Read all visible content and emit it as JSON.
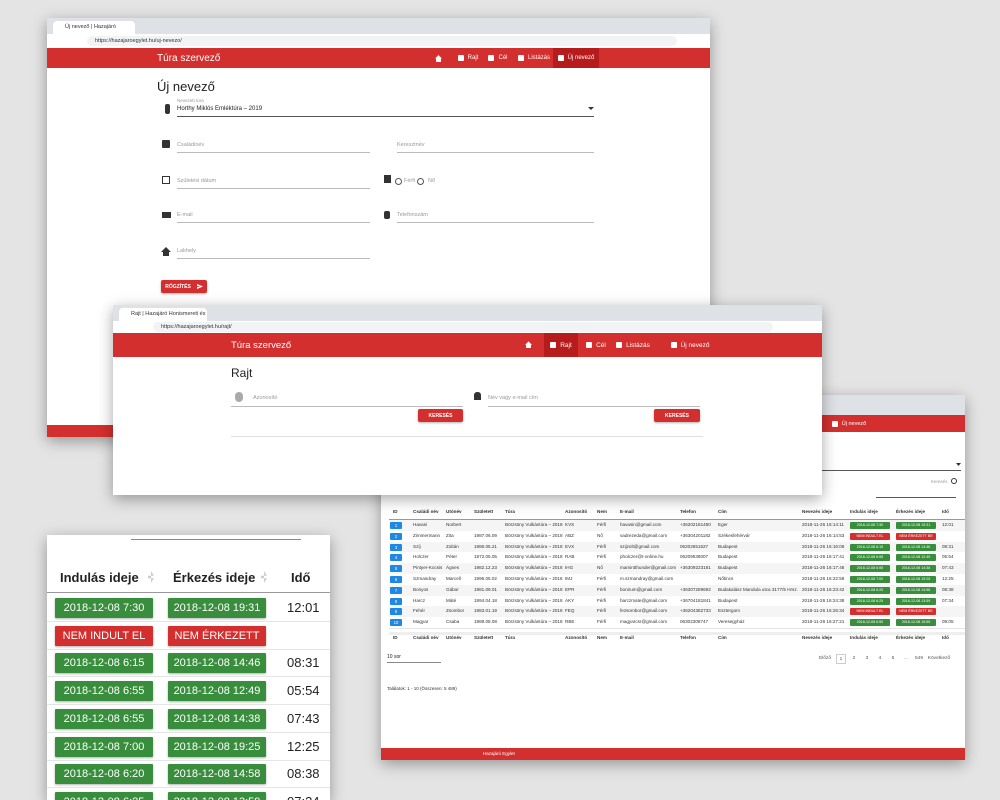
{
  "nav": {
    "brand": "Túra szervező",
    "items": [
      "Rajt",
      "Cél",
      "Listázás",
      "Új nevező"
    ]
  },
  "new_entry": {
    "tab": "Új nevező | Hazajáró Honisme...",
    "url": "https://hazajaroegylet.hu/uj-nevezo/",
    "title": "Új nevező",
    "tour_label": "Nevezett túra",
    "tour_value": "Horthy Miklós Emléktúra – 2019",
    "fields": {
      "family": "Családinév",
      "given": "Keresztnév",
      "birth": "Születési dátum",
      "male": "Férfi",
      "female": "Nő",
      "email": "E-mail",
      "phone": "Telefonszám",
      "city": "Lakhely"
    },
    "button": "RÖGZÍTÉS"
  },
  "start": {
    "tab": "Rajt | Hazajáró Honismereti és T...",
    "url": "https://hazajaroegylet.hu/rajt/",
    "title": "Rajt",
    "id_field": "Azonosító",
    "name_field": "Név vagy e-mail cím",
    "button": "KERESÉS"
  },
  "list": {
    "search": "Keresés",
    "columns": [
      "ID",
      "Családi név",
      "Utónév",
      "Született",
      "Túra",
      "Azonosító",
      "Nem",
      "E-mail",
      "Telefon",
      "Cím",
      "Nevezés ideje",
      "Indulás ideje",
      "Érkezés ideje",
      "Idő"
    ],
    "rows": [
      [
        1,
        "Havasi",
        "Norbert",
        null,
        "Börzsöny Vulkántúra – 2018",
        "KVS",
        "Férfi",
        "havasin@gmail.com",
        "+36202181450",
        "Eger",
        "2018-11-26 16:14:11",
        "2018-12-08 7:30",
        "2018-12-08 19:31",
        "12:01"
      ],
      [
        2,
        "Zimmermann",
        "Zita",
        "1987.06.09",
        "Börzsöny Vulkántúra – 2018",
        "ABZ",
        "Nő",
        "vadrezeda@gmail.com",
        "+36304201182",
        "Székesfehérvár",
        "2018-11-26 16:14:53",
        "NEM INDULT EL",
        "NEM ÉRKEZETT BE",
        null
      ],
      [
        3,
        "Szíj",
        "Zoltán",
        "1986.05.21",
        "Börzsöny Vulkántúra – 2018",
        "EVX",
        "Férfi",
        "szijzolt@gmail.com",
        "06202651627",
        "Budapest",
        "2018-11-26 16:16:06",
        "2018-12-08 6:15",
        "2018-12-08 14:46",
        "08:31"
      ],
      [
        4,
        "Holczer",
        "Péter",
        "1972.05.05",
        "Börzsöny Vulkántúra – 2018",
        "RAB",
        "Férfi",
        "pholczer@t-online.hu",
        "06209539007",
        "Budapest",
        "2018-11-26 16:17:41",
        "2018-12-08 6:55",
        "2018-12-08 12:49",
        "05:54"
      ],
      [
        5,
        "Pintyer-Kocsis",
        "Ágnes",
        "1982.12.23",
        "Börzsöny Vulkántúra – 2018",
        "IHG",
        "Nő",
        "mamintthunder@gmail.com",
        "+36309223181",
        "Budapest",
        "2018-11-26 16:17:46",
        "2018-12-08 6:55",
        "2018-12-08 14:38",
        "07:43"
      ],
      [
        6,
        "Szmandray",
        "Marcell",
        "1996.05.02",
        "Börzsöny Vulkántúra – 2018",
        "IMJ",
        "Férfi",
        "m.szmandray@gmail.com",
        null,
        "Nőtincs",
        "2018-11-26 16:22:59",
        "2018-12-08 7:00",
        "2018-12-08 19:25",
        "12:25"
      ],
      [
        7,
        "Bonyos",
        "Gábor",
        "1981.09.01",
        "Börzsöny Vulkántúra – 2018",
        "EPR",
        "Férfi",
        "bonirum@gmail.com",
        "+36307289692",
        "Budakalász Mandula utca 3177/5 Hrsz.",
        "2018-11-26 16:23:42",
        "2018-12-08 6:20",
        "2018-12-08 14:58",
        "08:38"
      ],
      [
        8,
        "Harcz",
        "Máté",
        "1994.04.18",
        "Börzsöny Vulkántúra – 2018",
        "AKY",
        "Férfi",
        "harczmate@gmail.com",
        "+36704181841",
        "Budapest",
        "2018-11-26 16:24:38",
        "2018-12-08 6:25",
        "2018-12-08 13:59",
        "07:34"
      ],
      [
        9,
        "Fehér",
        "Zsombor",
        "1983.01.19",
        "Börzsöny Vulkántúra – 2018",
        "FEQ",
        "Férfi",
        "fezsombor@gmail.com",
        "+36204382733",
        "Esztergom",
        "2018-11-26 16:26:34",
        "NEM INDULT EL",
        "NEM ÉRKEZETT BE",
        null
      ],
      [
        10,
        "Magyar",
        "Csaba",
        "1989.08.08",
        "Börzsöny Vulkántúra – 2018",
        "RBE",
        "Férfi",
        "magyarcsr@gmail.com",
        "06302308747",
        "Veresegyház",
        "2018-11-26 16:27:21",
        "2018-12-08 6:50",
        "2018-12-08 15:55",
        "09:05"
      ]
    ],
    "page_size": "10 sor",
    "pagination": [
      "Előző",
      "1",
      "2",
      "3",
      "4",
      "5",
      "...",
      "549",
      "Következő"
    ],
    "summary": "Találatok: 1 - 10 (Összesen: 5 489)",
    "footer": "Hazajáró Egylet"
  }
}
